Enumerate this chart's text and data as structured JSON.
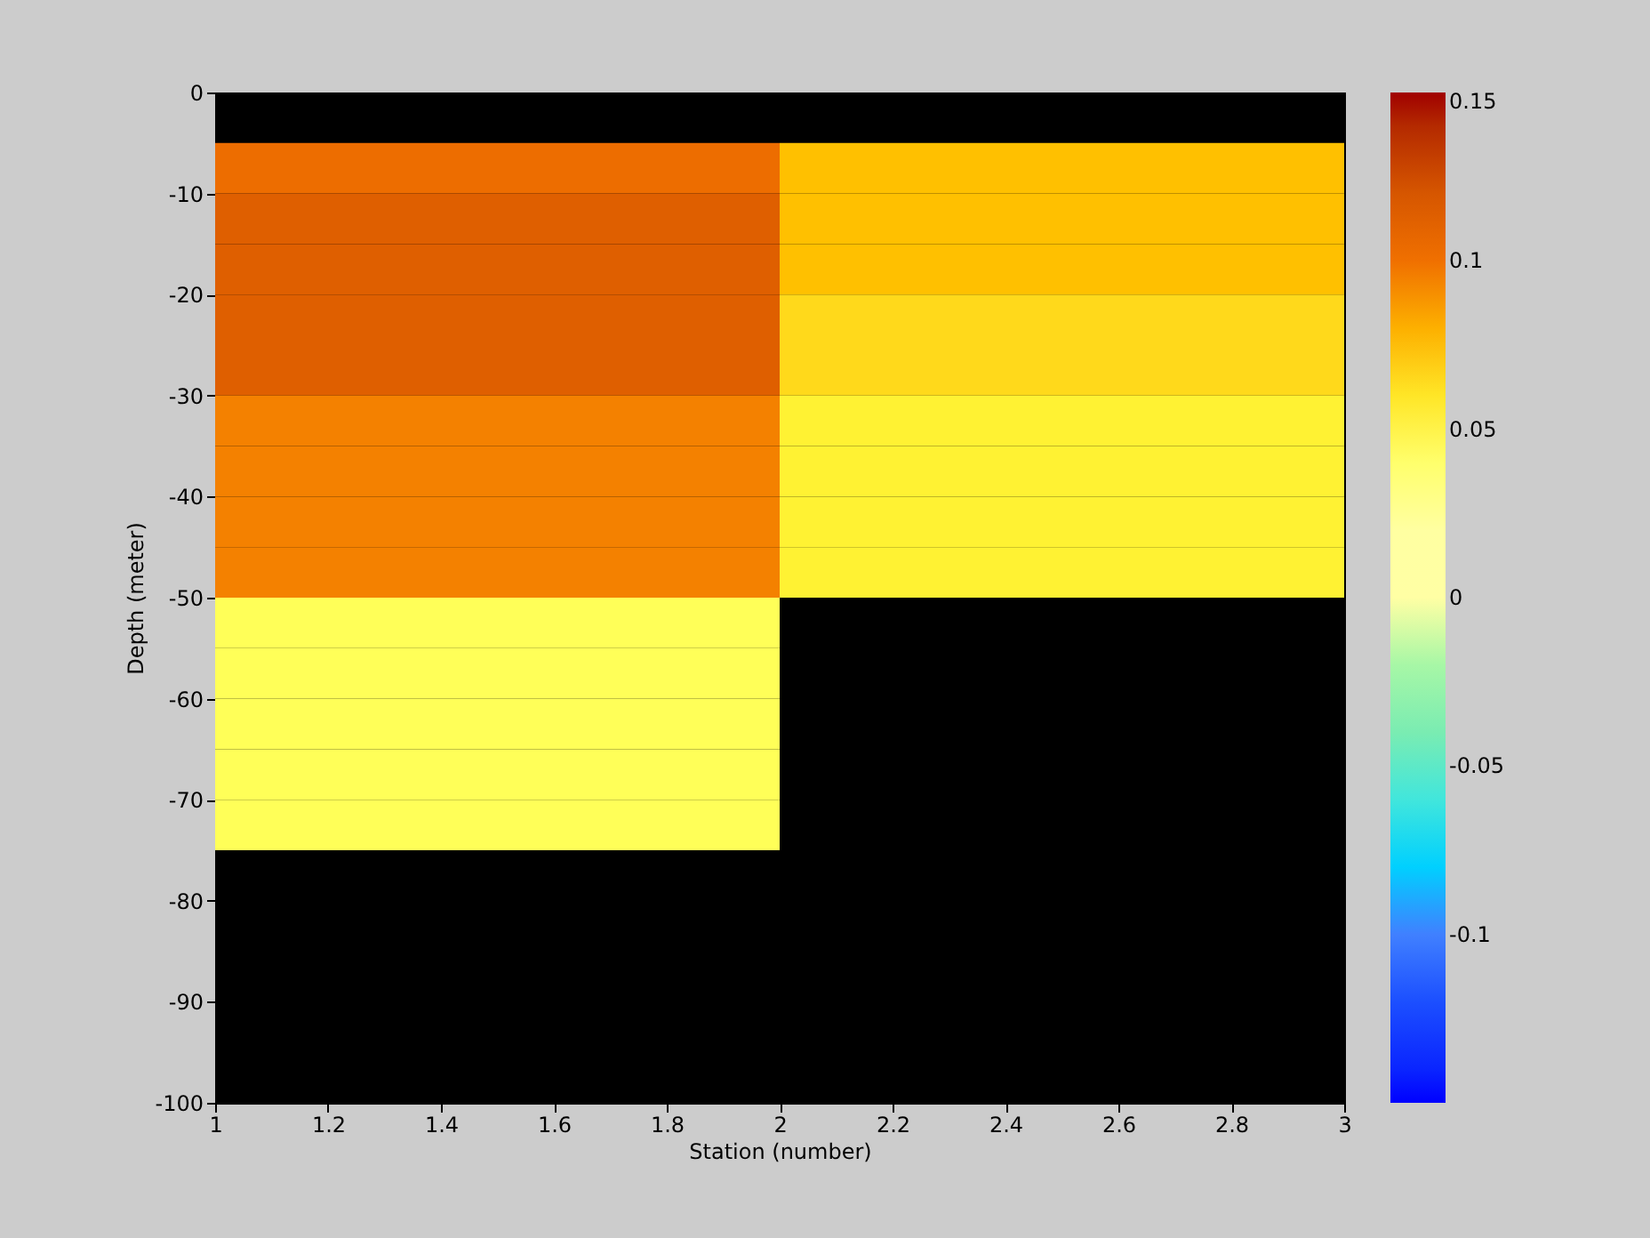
{
  "chart_data": {
    "type": "heatmap",
    "xlabel": "Station (number)",
    "ylabel": "Depth (meter)",
    "x": [
      1.5,
      2.5
    ],
    "y": [
      -7.5,
      -12.5,
      -17.5,
      -22.5,
      -27.5,
      -32.5,
      -37.5,
      -42.5,
      -47.5,
      -52.5,
      -57.5,
      -62.5,
      -67.5,
      -72.5
    ],
    "cells": [
      [
        0.102,
        0.075
      ],
      [
        0.113,
        0.075
      ],
      [
        0.113,
        0.075
      ],
      [
        0.113,
        0.065
      ],
      [
        0.113,
        0.065
      ],
      [
        0.095,
        0.055
      ],
      [
        0.095,
        0.055
      ],
      [
        0.095,
        0.055
      ],
      [
        0.095,
        0.055
      ],
      [
        0.045,
        null
      ],
      [
        0.045,
        null
      ],
      [
        0.045,
        null
      ],
      [
        0.045,
        null
      ],
      [
        0.045,
        null
      ]
    ],
    "xlim": [
      1,
      3
    ],
    "ylim": [
      -100,
      0
    ],
    "xticks": [
      1,
      1.2,
      1.4,
      1.6,
      1.8,
      2,
      2.2,
      2.4,
      2.6,
      2.8,
      3
    ],
    "yticks": [
      0,
      -10,
      -20,
      -30,
      -40,
      -50,
      -60,
      -70,
      -80,
      -90,
      -100
    ],
    "clim": [
      -0.15,
      0.15
    ],
    "cticks": [
      -0.1,
      -0.05,
      0,
      0.05,
      0.1,
      0.15
    ],
    "grid": false
  }
}
